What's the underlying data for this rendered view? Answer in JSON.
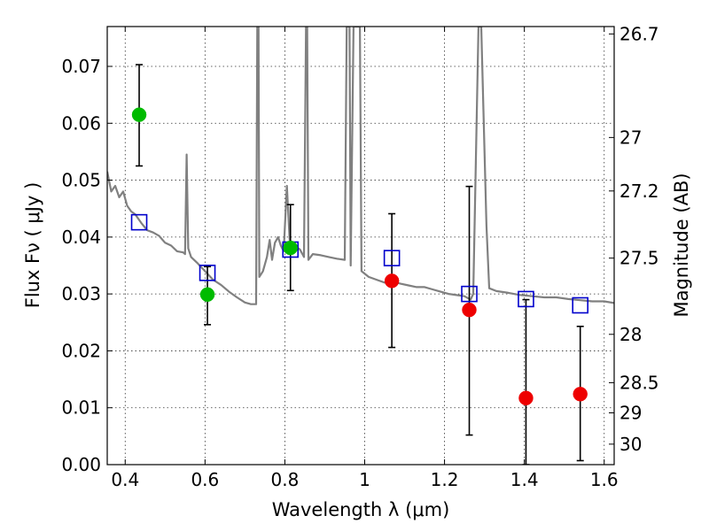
{
  "chart_data": {
    "type": "scatter",
    "title": "",
    "xlabel": "Wavelength  λ (μm)",
    "ylabel": "Flux  Fν  ( μJy )",
    "y2label": "Magnitude (AB)",
    "xlim": [
      0.355,
      1.625
    ],
    "ylim": [
      0.0,
      0.077
    ],
    "grid": true,
    "x_ticks": [
      {
        "v": 0.4,
        "label": "0.4"
      },
      {
        "v": 0.6,
        "label": "0.6"
      },
      {
        "v": 0.8,
        "label": "0.8"
      },
      {
        "v": 1.0,
        "label": "1"
      },
      {
        "v": 1.2,
        "label": "1.2"
      },
      {
        "v": 1.4,
        "label": "1.4"
      },
      {
        "v": 1.6,
        "label": "1.6"
      }
    ],
    "y_ticks": [
      {
        "v": 0.0,
        "label": "0.00"
      },
      {
        "v": 0.01,
        "label": "0.01"
      },
      {
        "v": 0.02,
        "label": "0.02"
      },
      {
        "v": 0.03,
        "label": "0.03"
      },
      {
        "v": 0.04,
        "label": "0.04"
      },
      {
        "v": 0.05,
        "label": "0.05"
      },
      {
        "v": 0.06,
        "label": "0.06"
      },
      {
        "v": 0.07,
        "label": "0.07"
      }
    ],
    "y2_ticks": [
      {
        "flux": 0.0757,
        "label": "26.7"
      },
      {
        "flux": 0.0575,
        "label": "27"
      },
      {
        "flux": 0.0481,
        "label": "27.2"
      },
      {
        "flux": 0.0363,
        "label": "27.5"
      },
      {
        "flux": 0.0229,
        "label": "28"
      },
      {
        "flux": 0.0144,
        "label": "28.5"
      },
      {
        "flux": 0.0091,
        "label": "29"
      },
      {
        "flux": 0.0036,
        "label": "30"
      }
    ],
    "series": [
      {
        "marker": "circle",
        "color": "#00bb00",
        "points": [
          {
            "x": 0.435,
            "y": 0.0615,
            "yerr_low": 0.0525,
            "yerr_high": 0.0703
          },
          {
            "x": 0.606,
            "y": 0.0299,
            "yerr_low": 0.0246,
            "yerr_high": 0.0348
          },
          {
            "x": 0.814,
            "y": 0.0381,
            "yerr_low": 0.0306,
            "yerr_high": 0.0457
          }
        ]
      },
      {
        "marker": "circle",
        "color": "#ee0000",
        "points": [
          {
            "x": 1.068,
            "y": 0.0323,
            "yerr_low": 0.0206,
            "yerr_high": 0.0441
          },
          {
            "x": 1.262,
            "y": 0.0272,
            "yerr_low": 0.0052,
            "yerr_high": 0.0489
          },
          {
            "x": 1.404,
            "y": 0.0117,
            "yerr_low": 0.0,
            "yerr_high": 0.029
          },
          {
            "x": 1.54,
            "y": 0.0124,
            "yerr_low": 0.0007,
            "yerr_high": 0.0243
          }
        ]
      },
      {
        "marker": "square-open",
        "color": "#0000cc",
        "points": [
          {
            "x": 0.435,
            "y": 0.0426
          },
          {
            "x": 0.606,
            "y": 0.0337
          },
          {
            "x": 0.814,
            "y": 0.0378
          },
          {
            "x": 1.068,
            "y": 0.0363
          },
          {
            "x": 1.262,
            "y": 0.03
          },
          {
            "x": 1.404,
            "y": 0.0291
          },
          {
            "x": 1.54,
            "y": 0.028
          }
        ]
      },
      {
        "marker": "line",
        "color": "#808080",
        "points": [
          [
            0.355,
            0.0515
          ],
          [
            0.365,
            0.048
          ],
          [
            0.375,
            0.049
          ],
          [
            0.385,
            0.047
          ],
          [
            0.395,
            0.048
          ],
          [
            0.405,
            0.0455
          ],
          [
            0.415,
            0.0445
          ],
          [
            0.425,
            0.044
          ],
          [
            0.44,
            0.0425
          ],
          [
            0.455,
            0.0412
          ],
          [
            0.47,
            0.0408
          ],
          [
            0.485,
            0.0402
          ],
          [
            0.5,
            0.039
          ],
          [
            0.515,
            0.0385
          ],
          [
            0.53,
            0.0375
          ],
          [
            0.545,
            0.0373
          ],
          [
            0.55,
            0.037
          ],
          [
            0.554,
            0.0545
          ],
          [
            0.558,
            0.038
          ],
          [
            0.565,
            0.0365
          ],
          [
            0.58,
            0.0355
          ],
          [
            0.6,
            0.034
          ],
          [
            0.62,
            0.0325
          ],
          [
            0.64,
            0.0316
          ],
          [
            0.66,
            0.0304
          ],
          [
            0.68,
            0.0294
          ],
          [
            0.7,
            0.0285
          ],
          [
            0.715,
            0.0282
          ],
          [
            0.728,
            0.0282
          ],
          [
            0.731,
            0.077
          ],
          [
            0.734,
            0.077
          ],
          [
            0.736,
            0.033
          ],
          [
            0.745,
            0.034
          ],
          [
            0.755,
            0.0365
          ],
          [
            0.762,
            0.0395
          ],
          [
            0.768,
            0.036
          ],
          [
            0.775,
            0.039
          ],
          [
            0.783,
            0.04
          ],
          [
            0.79,
            0.0385
          ],
          [
            0.797,
            0.0375
          ],
          [
            0.805,
            0.049
          ],
          [
            0.812,
            0.0395
          ],
          [
            0.825,
            0.0385
          ],
          [
            0.838,
            0.0378
          ],
          [
            0.848,
            0.0365
          ],
          [
            0.853,
            0.077
          ],
          [
            0.856,
            0.077
          ],
          [
            0.859,
            0.036
          ],
          [
            0.87,
            0.037
          ],
          [
            0.89,
            0.0368
          ],
          [
            0.91,
            0.0365
          ],
          [
            0.93,
            0.0362
          ],
          [
            0.95,
            0.036
          ],
          [
            0.955,
            0.077
          ],
          [
            0.962,
            0.077
          ],
          [
            0.965,
            0.035
          ],
          [
            0.972,
            0.077
          ],
          [
            0.978,
            0.077
          ],
          [
            0.983,
            0.077
          ],
          [
            0.988,
            0.077
          ],
          [
            0.992,
            0.034
          ],
          [
            1.01,
            0.033
          ],
          [
            1.03,
            0.0325
          ],
          [
            1.05,
            0.032
          ],
          [
            1.07,
            0.0322
          ],
          [
            1.09,
            0.0318
          ],
          [
            1.11,
            0.0315
          ],
          [
            1.13,
            0.0312
          ],
          [
            1.15,
            0.0312
          ],
          [
            1.17,
            0.0308
          ],
          [
            1.19,
            0.0304
          ],
          [
            1.21,
            0.03
          ],
          [
            1.23,
            0.0298
          ],
          [
            1.25,
            0.0296
          ],
          [
            1.265,
            0.029
          ],
          [
            1.272,
            0.03
          ],
          [
            1.285,
            0.077
          ],
          [
            1.292,
            0.077
          ],
          [
            1.305,
            0.042
          ],
          [
            1.312,
            0.031
          ],
          [
            1.33,
            0.0305
          ],
          [
            1.36,
            0.0302
          ],
          [
            1.39,
            0.0298
          ],
          [
            1.42,
            0.0296
          ],
          [
            1.45,
            0.0294
          ],
          [
            1.48,
            0.0294
          ],
          [
            1.51,
            0.0291
          ],
          [
            1.54,
            0.0289
          ],
          [
            1.57,
            0.0287
          ],
          [
            1.6,
            0.0287
          ],
          [
            1.625,
            0.0284
          ]
        ]
      }
    ]
  }
}
